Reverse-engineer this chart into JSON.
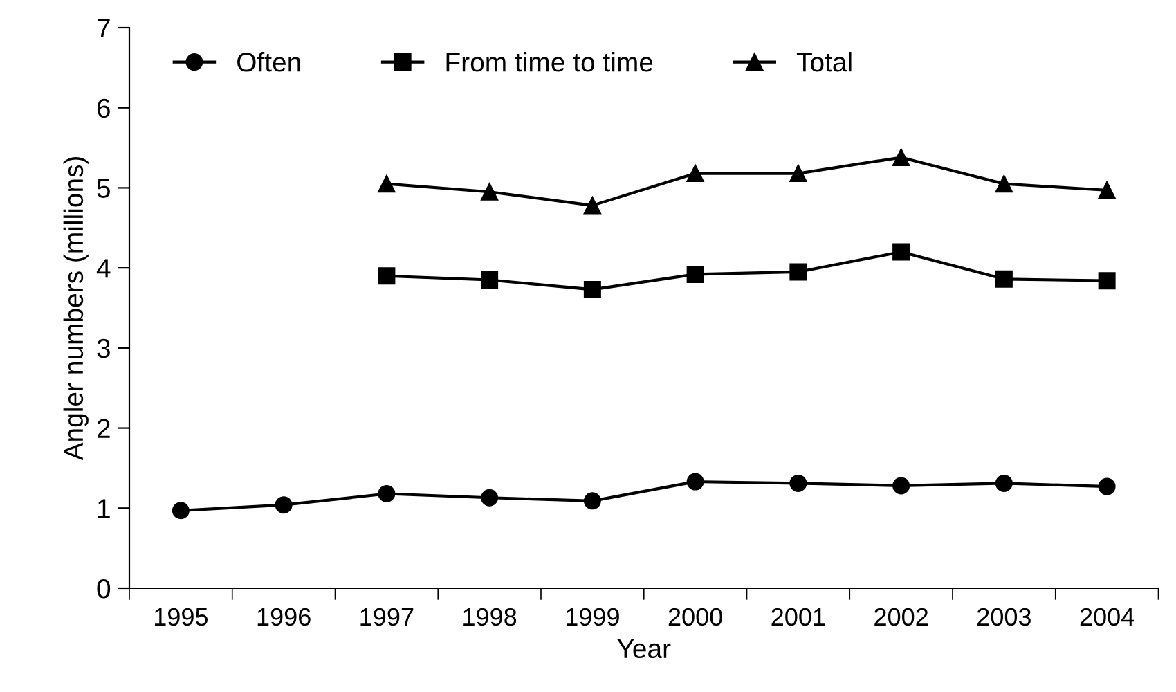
{
  "chart_data": {
    "type": "line",
    "xlabel": "Year",
    "ylabel": "Angler numbers (millions)",
    "categories": [
      "1995",
      "1996",
      "1997",
      "1998",
      "1999",
      "2000",
      "2001",
      "2002",
      "2003",
      "2004"
    ],
    "series": [
      {
        "name": "Often",
        "color": "#000000",
        "marker": "circle",
        "values": [
          0.97,
          1.04,
          1.18,
          1.13,
          1.09,
          1.33,
          1.31,
          1.28,
          1.31,
          1.27
        ]
      },
      {
        "name": "From time to time",
        "color": "#000000",
        "marker": "square",
        "values": [
          null,
          null,
          3.9,
          3.85,
          3.73,
          3.92,
          3.95,
          4.2,
          3.86,
          3.84
        ]
      },
      {
        "name": "Total",
        "color": "#000000",
        "marker": "triangle",
        "values": [
          null,
          null,
          5.05,
          4.95,
          4.78,
          5.18,
          5.18,
          5.38,
          5.05,
          4.97
        ]
      }
    ],
    "ylim": [
      0,
      7
    ],
    "yticks": [
      0,
      1,
      2,
      3,
      4,
      5,
      6,
      7
    ],
    "grid": false,
    "legend": "top left",
    "line_style": "solid"
  }
}
